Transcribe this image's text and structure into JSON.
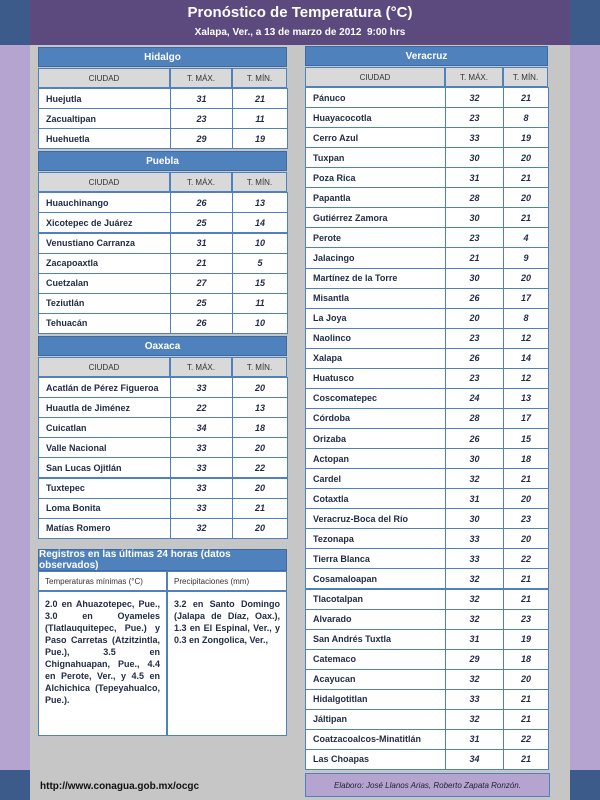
{
  "header": {
    "title": "Pronóstico de Temperatura (°C)",
    "subtitle": "Xalapa, Ver., a 13 de marzo de 2012  9:00 hrs"
  },
  "left_tables": [
    {
      "title": "Hidalgo",
      "columns": [
        "CIUDAD",
        "T. MÁX.",
        "T. MÍN."
      ],
      "rows": [
        [
          "Huejutla",
          31,
          21
        ],
        [
          "Zacualtipan",
          23,
          11
        ],
        [
          "Huehuetla",
          29,
          19
        ]
      ]
    },
    {
      "title": "Puebla",
      "columns": [
        "CIUDAD",
        "T. MÁX.",
        "T. MÍN."
      ],
      "rows": [
        [
          "Huauchinango",
          26,
          13
        ],
        [
          "Xicotepec de Juárez",
          25,
          14
        ],
        [
          "Venustiano Carranza",
          31,
          10
        ],
        [
          "Zacapoaxtla",
          21,
          5
        ],
        [
          "Cuetzalan",
          27,
          15
        ],
        [
          "Teziutlán",
          25,
          11
        ],
        [
          "Tehuacán",
          26,
          10
        ]
      ]
    },
    {
      "title": "Oaxaca",
      "columns": [
        "CIUDAD",
        "T. MÁX.",
        "T. MÍN."
      ],
      "rows": [
        [
          "Acatlán de Pérez Figueroa",
          33,
          20
        ],
        [
          "Huautla de Jiménez",
          22,
          13
        ],
        [
          "Cuicatlan",
          34,
          18
        ],
        [
          "Valle Nacional",
          33,
          20
        ],
        [
          "San Lucas Ojitlán",
          33,
          22
        ],
        [
          "Tuxtepec",
          33,
          20
        ],
        [
          "Loma Bonita",
          33,
          21
        ],
        [
          "Matías Romero",
          32,
          20
        ]
      ]
    }
  ],
  "right_table": {
    "title": "Veracruz",
    "columns": [
      "CIUDAD",
      "T. MÁX.",
      "T. MÍN."
    ],
    "rows": [
      [
        "Pánuco",
        32,
        21
      ],
      [
        "Huayacocotla",
        23,
        8
      ],
      [
        "Cerro Azul",
        33,
        19
      ],
      [
        "Tuxpan",
        30,
        20
      ],
      [
        "Poza Rica",
        31,
        21
      ],
      [
        "Papantla",
        28,
        20
      ],
      [
        "Gutiérrez Zamora",
        30,
        21
      ],
      [
        "Perote",
        23,
        4
      ],
      [
        "Jalacingo",
        21,
        9
      ],
      [
        "Martínez de la Torre",
        30,
        20
      ],
      [
        "Misantla",
        26,
        17
      ],
      [
        "La Joya",
        20,
        8
      ],
      [
        "Naolinco",
        23,
        12
      ],
      [
        "Xalapa",
        26,
        14
      ],
      [
        "Huatusco",
        23,
        12
      ],
      [
        "Coscomatepec",
        24,
        13
      ],
      [
        "Córdoba",
        28,
        17
      ],
      [
        "Orizaba",
        26,
        15
      ],
      [
        "Actopan",
        30,
        18
      ],
      [
        "Cardel",
        32,
        21
      ],
      [
        "Cotaxtla",
        31,
        20
      ],
      [
        "Veracruz-Boca del Río",
        30,
        23
      ],
      [
        "Tezonapa",
        33,
        20
      ],
      [
        "Tierra Blanca",
        33,
        22
      ],
      [
        "Cosamaloapan",
        32,
        21
      ],
      [
        "Tlacotalpan",
        32,
        21
      ],
      [
        "Alvarado",
        32,
        23
      ],
      [
        "San Andrés Tuxtla",
        31,
        19
      ],
      [
        "Catemaco",
        29,
        18
      ],
      [
        "Acayucan",
        32,
        20
      ],
      [
        "Hidalgotitlan",
        33,
        21
      ],
      [
        "Jáltipan",
        32,
        21
      ],
      [
        "Coatzacoalcos-Minatitlán",
        31,
        22
      ],
      [
        "Las Choapas",
        34,
        21
      ]
    ]
  },
  "observed": {
    "title": "Registros en las últimas 24 horas (datos observados)",
    "columns": [
      "Temperaturas mínimas (°C)",
      "Precipitaciones (mm)"
    ],
    "text": [
      "2.0 en Ahuazotepec, Pue., 3.0 en Oyameles (Tlatlauquitepec, Pue.) y Paso Carretas (Atzitzintla, Pue.), 3.5 en Chignahuapan, Pue., 4.4 en Perote, Ver., y 4.5 en Alchichica (Tepeyahualco, Pue.).",
      "3.2 en Santo Domingo (Jalapa de Díaz, Oax.), 1.3 en El Espinal, Ver., y 0.3 en Zongolica, Ver.,"
    ]
  },
  "footer": {
    "url": "http://www.conagua.gob.mx/ocgc",
    "credit": "Elaboro: José Llanos Arias, Roberto Zapata Ronzón."
  }
}
